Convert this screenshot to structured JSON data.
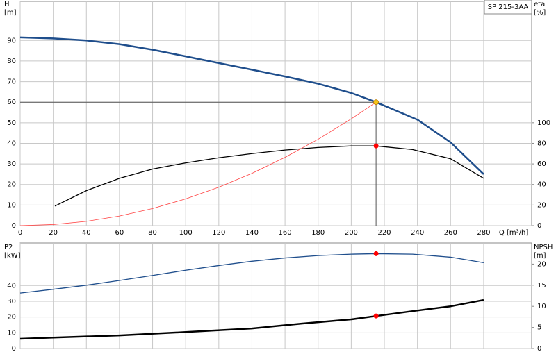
{
  "chart_data": [
    {
      "type": "line",
      "title": "SP 215-3AA",
      "xlabel": "Q [m³/h]",
      "ylabel": [
        "H",
        "[m]"
      ],
      "y2label": [
        "eta",
        "[%]"
      ],
      "xlim": [
        0,
        309
      ],
      "xticks": [
        0,
        20,
        40,
        60,
        80,
        100,
        120,
        140,
        160,
        180,
        200,
        220,
        240,
        260,
        280
      ],
      "ylim": [
        0,
        109
      ],
      "yticks": [
        0,
        10,
        20,
        30,
        40,
        50,
        60,
        70,
        80,
        90
      ],
      "y2lim": [
        0,
        218
      ],
      "y2ticks": [
        0,
        20,
        40,
        60,
        80,
        100
      ],
      "grid": true,
      "xtick_labels": true,
      "series": [
        {
          "color": "#1f4e8c",
          "width": 2.5,
          "x": [
            0,
            20,
            40,
            60,
            80,
            100,
            120,
            140,
            160,
            180,
            200,
            215,
            240,
            260,
            280
          ],
          "values": [
            91.5,
            91,
            90,
            88.2,
            85.5,
            82.3,
            79,
            75.8,
            72.5,
            69,
            64.5,
            60,
            51.5,
            40.5,
            25
          ]
        },
        {
          "color": "#000000",
          "width": 1.3,
          "axis": "y2",
          "x": [
            21,
            40,
            60,
            80,
            100,
            120,
            140,
            160,
            180,
            200,
            215,
            237,
            260,
            280
          ],
          "values": [
            19,
            34,
            46,
            55,
            61,
            66,
            70,
            73.5,
            76,
            77.5,
            77.5,
            74,
            65,
            46
          ]
        },
        {
          "color": "#ff4040",
          "width": 0.8,
          "x": [
            0,
            20,
            40,
            60,
            80,
            100,
            120,
            140,
            160,
            180,
            200,
            215
          ],
          "values": [
            0,
            0.52,
            2.08,
            4.67,
            8.3,
            13,
            18.7,
            25.4,
            33.2,
            42,
            51.9,
            60
          ]
        }
      ],
      "guide": true,
      "markers": [
        {
          "x": 215,
          "y": 60,
          "color": "#f5c518"
        },
        {
          "x": 215,
          "y": 77.5,
          "axis": "y2",
          "color": "#ff0000"
        }
      ]
    },
    {
      "type": "line",
      "ylabel": [
        "P2",
        "[kW]"
      ],
      "y2label": [
        "NPSH",
        "[m]"
      ],
      "xlim": [
        0,
        309
      ],
      "xticks": [
        0,
        20,
        40,
        60,
        80,
        100,
        120,
        140,
        160,
        180,
        200,
        220,
        240,
        260,
        280
      ],
      "ylim": [
        0,
        67
      ],
      "yticks": [
        0,
        10,
        20,
        30,
        40
      ],
      "y2lim": [
        0,
        25
      ],
      "y2ticks": [
        0,
        5,
        10,
        15,
        20
      ],
      "grid": true,
      "xtick_labels": false,
      "series": [
        {
          "color": "#1f4e8c",
          "width": 1.3,
          "x": [
            0,
            20,
            40,
            60,
            80,
            100,
            120,
            140,
            160,
            180,
            200,
            215,
            237,
            260,
            280
          ],
          "values": [
            35.2,
            37.6,
            40.2,
            43.2,
            46.4,
            49.7,
            52.7,
            55.4,
            57.5,
            59,
            59.9,
            60.2,
            59.9,
            58,
            54.5
          ]
        },
        {
          "color": "#000000",
          "width": 2.5,
          "axis": "y2",
          "x": [
            0,
            20,
            60,
            100,
            140,
            170,
            200,
            215,
            237,
            260,
            280
          ],
          "values": [
            2.3,
            2.6,
            3.1,
            3.9,
            4.75,
            5.9,
            6.9,
            7.7,
            8.85,
            10,
            11.5
          ]
        }
      ],
      "guide": false,
      "markers": [
        {
          "x": 215,
          "y": 60.2,
          "color": "#ff0000"
        },
        {
          "x": 215,
          "y": 7.7,
          "axis": "y2",
          "color": "#ff0000"
        }
      ]
    }
  ]
}
